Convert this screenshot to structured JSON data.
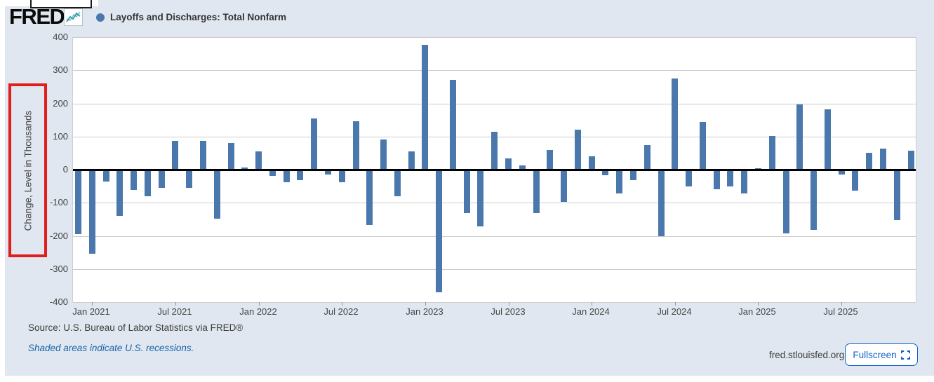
{
  "header": {
    "logo_text": "FRED",
    "registered_mark": "®",
    "series_label": "Layoffs and Discharges: Total Nonfarm"
  },
  "y_axis": {
    "label": "Change, Level in Thousands"
  },
  "footer": {
    "source": "Source: U.S. Bureau of Labor Statistics via FRED®",
    "recession_note": "Shaded areas indicate U.S. recessions.",
    "site": "fred.stlouisfed.org",
    "fullscreen_label": "Fullscreen"
  },
  "colors": {
    "bar": "#4a78ad",
    "legend_dot": "#4a78ad",
    "background": "#e0e7f0",
    "accent_blue": "#1164c9",
    "link_blue": "#1a63a8",
    "highlight_red": "#e11d1d",
    "gridline": "#cccccc",
    "zero_line": "#000000"
  },
  "chart_data": {
    "type": "bar",
    "title": "Layoffs and Discharges: Total Nonfarm",
    "xlabel": "",
    "ylabel": "Change, Level in Thousands",
    "ylim": [
      -400,
      400
    ],
    "yticks": [
      400,
      300,
      200,
      100,
      0,
      -100,
      -200,
      -300,
      -400
    ],
    "grid": "horizontal",
    "legend_position": "top-left",
    "xtick_labels": [
      "Jan 2021",
      "Jul 2021",
      "Jan 2022",
      "Jul 2022",
      "Jan 2023",
      "Jul 2023",
      "Jan 2024",
      "Jul 2024",
      "Jan 2025",
      "Jul 2025"
    ],
    "xtick_indices": [
      1,
      7,
      13,
      19,
      25,
      31,
      37,
      43,
      49,
      55
    ],
    "categories": [
      "Dec 2020",
      "Jan 2021",
      "Feb 2021",
      "Mar 2021",
      "Apr 2021",
      "May 2021",
      "Jun 2021",
      "Jul 2021",
      "Aug 2021",
      "Sep 2021",
      "Oct 2021",
      "Nov 2021",
      "Dec 2021",
      "Jan 2022",
      "Feb 2022",
      "Mar 2022",
      "Apr 2022",
      "May 2022",
      "Jun 2022",
      "Jul 2022",
      "Aug 2022",
      "Sep 2022",
      "Oct 2022",
      "Nov 2022",
      "Dec 2022",
      "Jan 2023",
      "Feb 2023",
      "Mar 2023",
      "Apr 2023",
      "May 2023",
      "Jun 2023",
      "Jul 2023",
      "Aug 2023",
      "Sep 2023",
      "Oct 2023",
      "Nov 2023",
      "Dec 2023",
      "Jan 2024",
      "Feb 2024",
      "Mar 2024",
      "Apr 2024",
      "May 2024",
      "Jun 2024",
      "Jul 2024",
      "Aug 2024",
      "Sep 2024",
      "Oct 2024",
      "Nov 2024",
      "Dec 2024",
      "Jan 2025",
      "Feb 2025",
      "Mar 2025",
      "Apr 2025",
      "May 2025",
      "Jun 2025",
      "Jul 2025",
      "Aug 2025",
      "Sep 2025",
      "Oct 2025",
      "Nov 2025",
      "Dec 2025"
    ],
    "values": [
      -195,
      -253,
      -37,
      -140,
      -61,
      -80,
      -55,
      86,
      -55,
      86,
      -148,
      80,
      6,
      56,
      -18,
      -39,
      -32,
      154,
      -14,
      -39,
      146,
      -168,
      91,
      -80,
      56,
      376,
      -370,
      270,
      -132,
      -171,
      114,
      34,
      12,
      -132,
      59,
      -98,
      120,
      41,
      -16,
      -71,
      -31,
      75,
      -200,
      276,
      -51,
      143,
      -59,
      -50,
      -71,
      5,
      102,
      -193,
      196,
      -181,
      181,
      -14,
      -64,
      51,
      64,
      -152,
      57
    ]
  }
}
